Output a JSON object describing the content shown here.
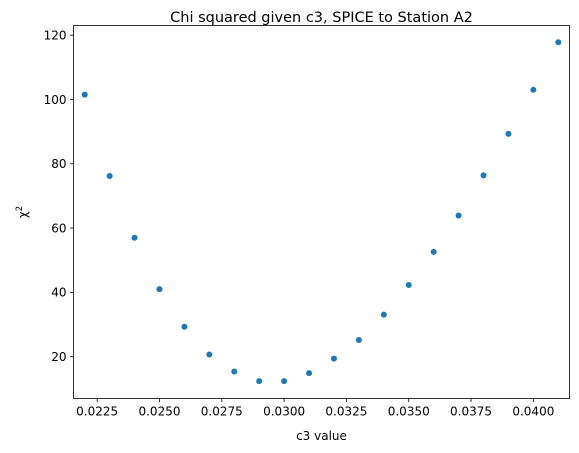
{
  "chart_data": {
    "type": "scatter",
    "title": "Chi squared given c3, SPICE to Station A2",
    "xlabel": "c3 value",
    "ylabel": "χ",
    "ylabel_superscript": "2",
    "xlim": [
      0.02155,
      0.04145
    ],
    "ylim": [
      7.0,
      123.0
    ],
    "x_ticks": [
      {
        "value": 0.0225,
        "label": "0.0225"
      },
      {
        "value": 0.025,
        "label": "0.0250"
      },
      {
        "value": 0.0275,
        "label": "0.0275"
      },
      {
        "value": 0.03,
        "label": "0.0300"
      },
      {
        "value": 0.0325,
        "label": "0.0325"
      },
      {
        "value": 0.035,
        "label": "0.0350"
      },
      {
        "value": 0.0375,
        "label": "0.0375"
      },
      {
        "value": 0.04,
        "label": "0.0400"
      }
    ],
    "y_ticks": [
      {
        "value": 20,
        "label": "20"
      },
      {
        "value": 40,
        "label": "40"
      },
      {
        "value": 60,
        "label": "60"
      },
      {
        "value": 80,
        "label": "80"
      },
      {
        "value": 100,
        "label": "100"
      },
      {
        "value": 120,
        "label": "120"
      }
    ],
    "grid": false,
    "marker_color": "#1f77b4",
    "x": [
      0.022,
      0.023,
      0.024,
      0.025,
      0.026,
      0.027,
      0.028,
      0.029,
      0.03,
      0.031,
      0.032,
      0.033,
      0.034,
      0.035,
      0.036,
      0.037,
      0.038,
      0.039,
      0.04,
      0.041
    ],
    "y": [
      101.5,
      76.2,
      57.0,
      41.0,
      29.3,
      20.7,
      15.4,
      12.4,
      12.4,
      14.9,
      19.4,
      25.2,
      33.1,
      42.3,
      52.6,
      63.9,
      76.4,
      89.3,
      103.0,
      117.8
    ]
  }
}
